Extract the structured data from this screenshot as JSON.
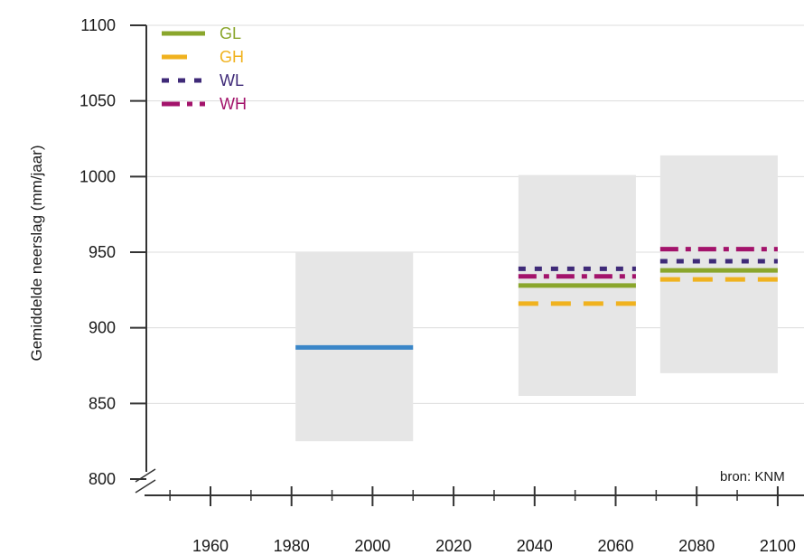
{
  "chart_data": {
    "type": "line",
    "ylabel": "Gemiddelde neerslag (mm/jaar)",
    "ylim": [
      800,
      1100
    ],
    "yticks": [
      800,
      850,
      900,
      950,
      1000,
      1050,
      1100
    ],
    "xticks": [
      1960,
      1980,
      2000,
      2020,
      2040,
      2060,
      2080,
      2100
    ],
    "xlim": [
      1943,
      2102
    ],
    "grid": true,
    "legend_position": "top-left",
    "source": "bron: KNM",
    "ranges": [
      {
        "x": [
          1981,
          2010
        ],
        "y": [
          825,
          950
        ],
        "color": "#e6e6e6"
      },
      {
        "x": [
          2036,
          2065
        ],
        "y": [
          855,
          1001
        ],
        "color": "#e6e6e6"
      },
      {
        "x": [
          2071,
          2100
        ],
        "y": [
          870,
          1014
        ],
        "color": "#e6e6e6"
      }
    ],
    "series": [
      {
        "name": "",
        "color": "#3a86c8",
        "dash": "solid",
        "segments": [
          {
            "x": [
              1981,
              2010
            ],
            "y": 887
          }
        ]
      },
      {
        "name": "GL",
        "color": "#8aa62c",
        "dash": "solid",
        "segments": [
          {
            "x": [
              2036,
              2065
            ],
            "y": 928
          },
          {
            "x": [
              2071,
              2100
            ],
            "y": 938
          }
        ]
      },
      {
        "name": "GH",
        "color": "#f0b21f",
        "dash": "long",
        "segments": [
          {
            "x": [
              2036,
              2065
            ],
            "y": 916
          },
          {
            "x": [
              2071,
              2100
            ],
            "y": 932
          }
        ]
      },
      {
        "name": "WL",
        "color": "#3f2a78",
        "dash": "short",
        "segments": [
          {
            "x": [
              2036,
              2065
            ],
            "y": 939
          },
          {
            "x": [
              2071,
              2100
            ],
            "y": 944
          }
        ]
      },
      {
        "name": "WH",
        "color": "#a3136b",
        "dash": "dashdot",
        "segments": [
          {
            "x": [
              2036,
              2065
            ],
            "y": 934
          },
          {
            "x": [
              2071,
              2100
            ],
            "y": 952
          }
        ]
      }
    ]
  }
}
